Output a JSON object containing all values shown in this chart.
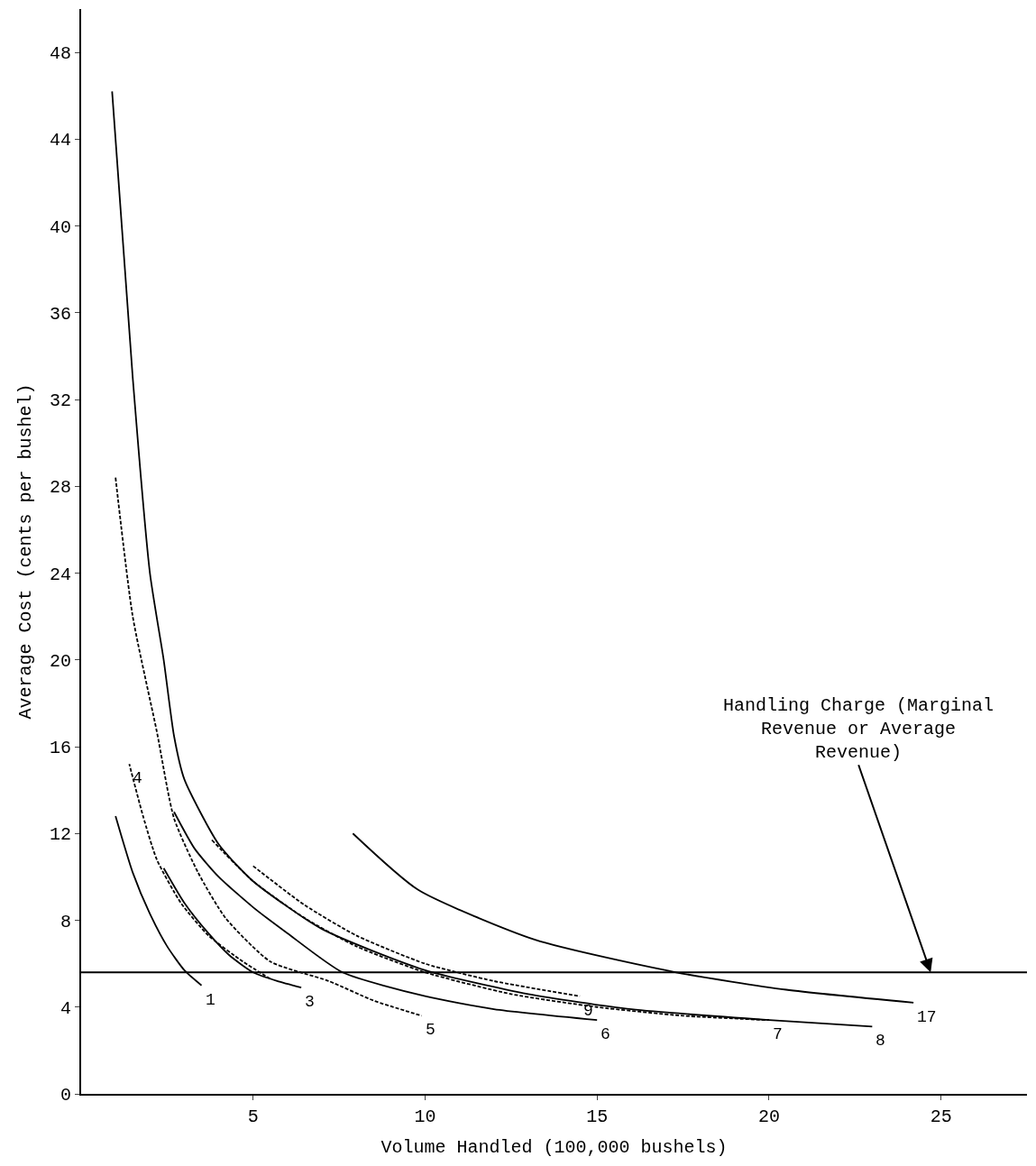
{
  "chart_data": {
    "type": "line",
    "xlabel": "Volume Handled (100,000 bushels)",
    "ylabel": "Average Cost (cents per bushel)",
    "xlim": [
      0,
      27.5
    ],
    "ylim": [
      0,
      50
    ],
    "xticks": [
      5,
      10,
      15,
      20,
      25
    ],
    "yticks": [
      0,
      4,
      8,
      12,
      16,
      20,
      24,
      28,
      32,
      36,
      40,
      44,
      48
    ],
    "legend": false,
    "marker": "none",
    "series": [
      {
        "name": "1",
        "color": "#000000",
        "line_style": "solid",
        "x": [
          1.0,
          1.5,
          2.0,
          2.5,
          3.0,
          3.5
        ],
        "values": [
          12.8,
          10.2,
          8.3,
          6.8,
          5.7,
          5.0
        ]
      },
      {
        "name": "3",
        "color": "#000000",
        "line_style": "solid",
        "x": [
          2.4,
          3.0,
          3.7,
          4.3,
          5.0,
          5.7,
          6.4
        ],
        "values": [
          10.4,
          8.8,
          7.4,
          6.4,
          5.6,
          5.2,
          4.9
        ]
      },
      {
        "name": "4",
        "color": "#000000",
        "line_style": "dashed",
        "x": [
          5.5,
          4.7,
          3.7,
          2.9,
          2.2,
          1.8,
          1.4
        ],
        "values": [
          5.3,
          6.1,
          7.3,
          8.8,
          10.8,
          12.8,
          15.2
        ]
      },
      {
        "name": "5",
        "color": "#000000",
        "line_style": "dashed",
        "x": [
          1.0,
          1.5,
          2.2,
          2.7,
          3.4,
          4.2,
          5.5,
          7.2,
          8.5,
          9.9
        ],
        "values": [
          28.4,
          22.0,
          16.7,
          12.7,
          10.2,
          8.1,
          6.1,
          5.2,
          4.3,
          3.6
        ]
      },
      {
        "name": "6",
        "color": "#000000",
        "line_style": "solid",
        "x": [
          2.7,
          3.3,
          4.0,
          5.0,
          6.0,
          7.6,
          10.0,
          12.0,
          15.0
        ],
        "values": [
          13.0,
          11.3,
          10.0,
          8.6,
          7.4,
          5.6,
          4.5,
          3.9,
          3.4
        ]
      },
      {
        "name": "7",
        "color": "#000000",
        "line_style": "dashed",
        "x": [
          3.8,
          5.0,
          6.5,
          8.0,
          10.0,
          12.5,
          15.0,
          17.5,
          20.0
        ],
        "values": [
          11.7,
          9.8,
          8.1,
          6.8,
          5.6,
          4.6,
          4.0,
          3.6,
          3.4
        ]
      },
      {
        "name": "8",
        "color": "#000000",
        "line_style": "solid",
        "x": [
          0.9,
          1.5,
          2.0,
          2.4,
          2.7,
          3.0,
          4.0,
          5.0,
          7.0,
          10.0,
          13.0,
          16.0,
          20.0,
          23.0
        ],
        "values": [
          46.2,
          33.0,
          24.0,
          20.0,
          16.5,
          14.5,
          11.5,
          9.8,
          7.6,
          5.7,
          4.6,
          3.9,
          3.4,
          3.1
        ]
      },
      {
        "name": "9",
        "color": "#000000",
        "line_style": "dashed",
        "x": [
          5.0,
          6.5,
          8.0,
          10.0,
          12.0,
          14.5
        ],
        "values": [
          10.5,
          8.7,
          7.3,
          6.0,
          5.2,
          4.5
        ]
      },
      {
        "name": "17",
        "color": "#000000",
        "line_style": "solid",
        "x": [
          7.9,
          9.8,
          13.2,
          17.3,
          20.5,
          24.2
        ],
        "values": [
          12.0,
          9.4,
          7.1,
          5.6,
          4.8,
          4.2
        ]
      }
    ],
    "ref_lines": [
      {
        "axis": "y",
        "value": 5.6,
        "color": "#000000",
        "line_style": "solid"
      }
    ],
    "annotations": [
      {
        "text": "Handling Charge (Marginal\nRevenue or Average\nRevenue)",
        "x": 24.7,
        "y": 5.6
      }
    ]
  }
}
